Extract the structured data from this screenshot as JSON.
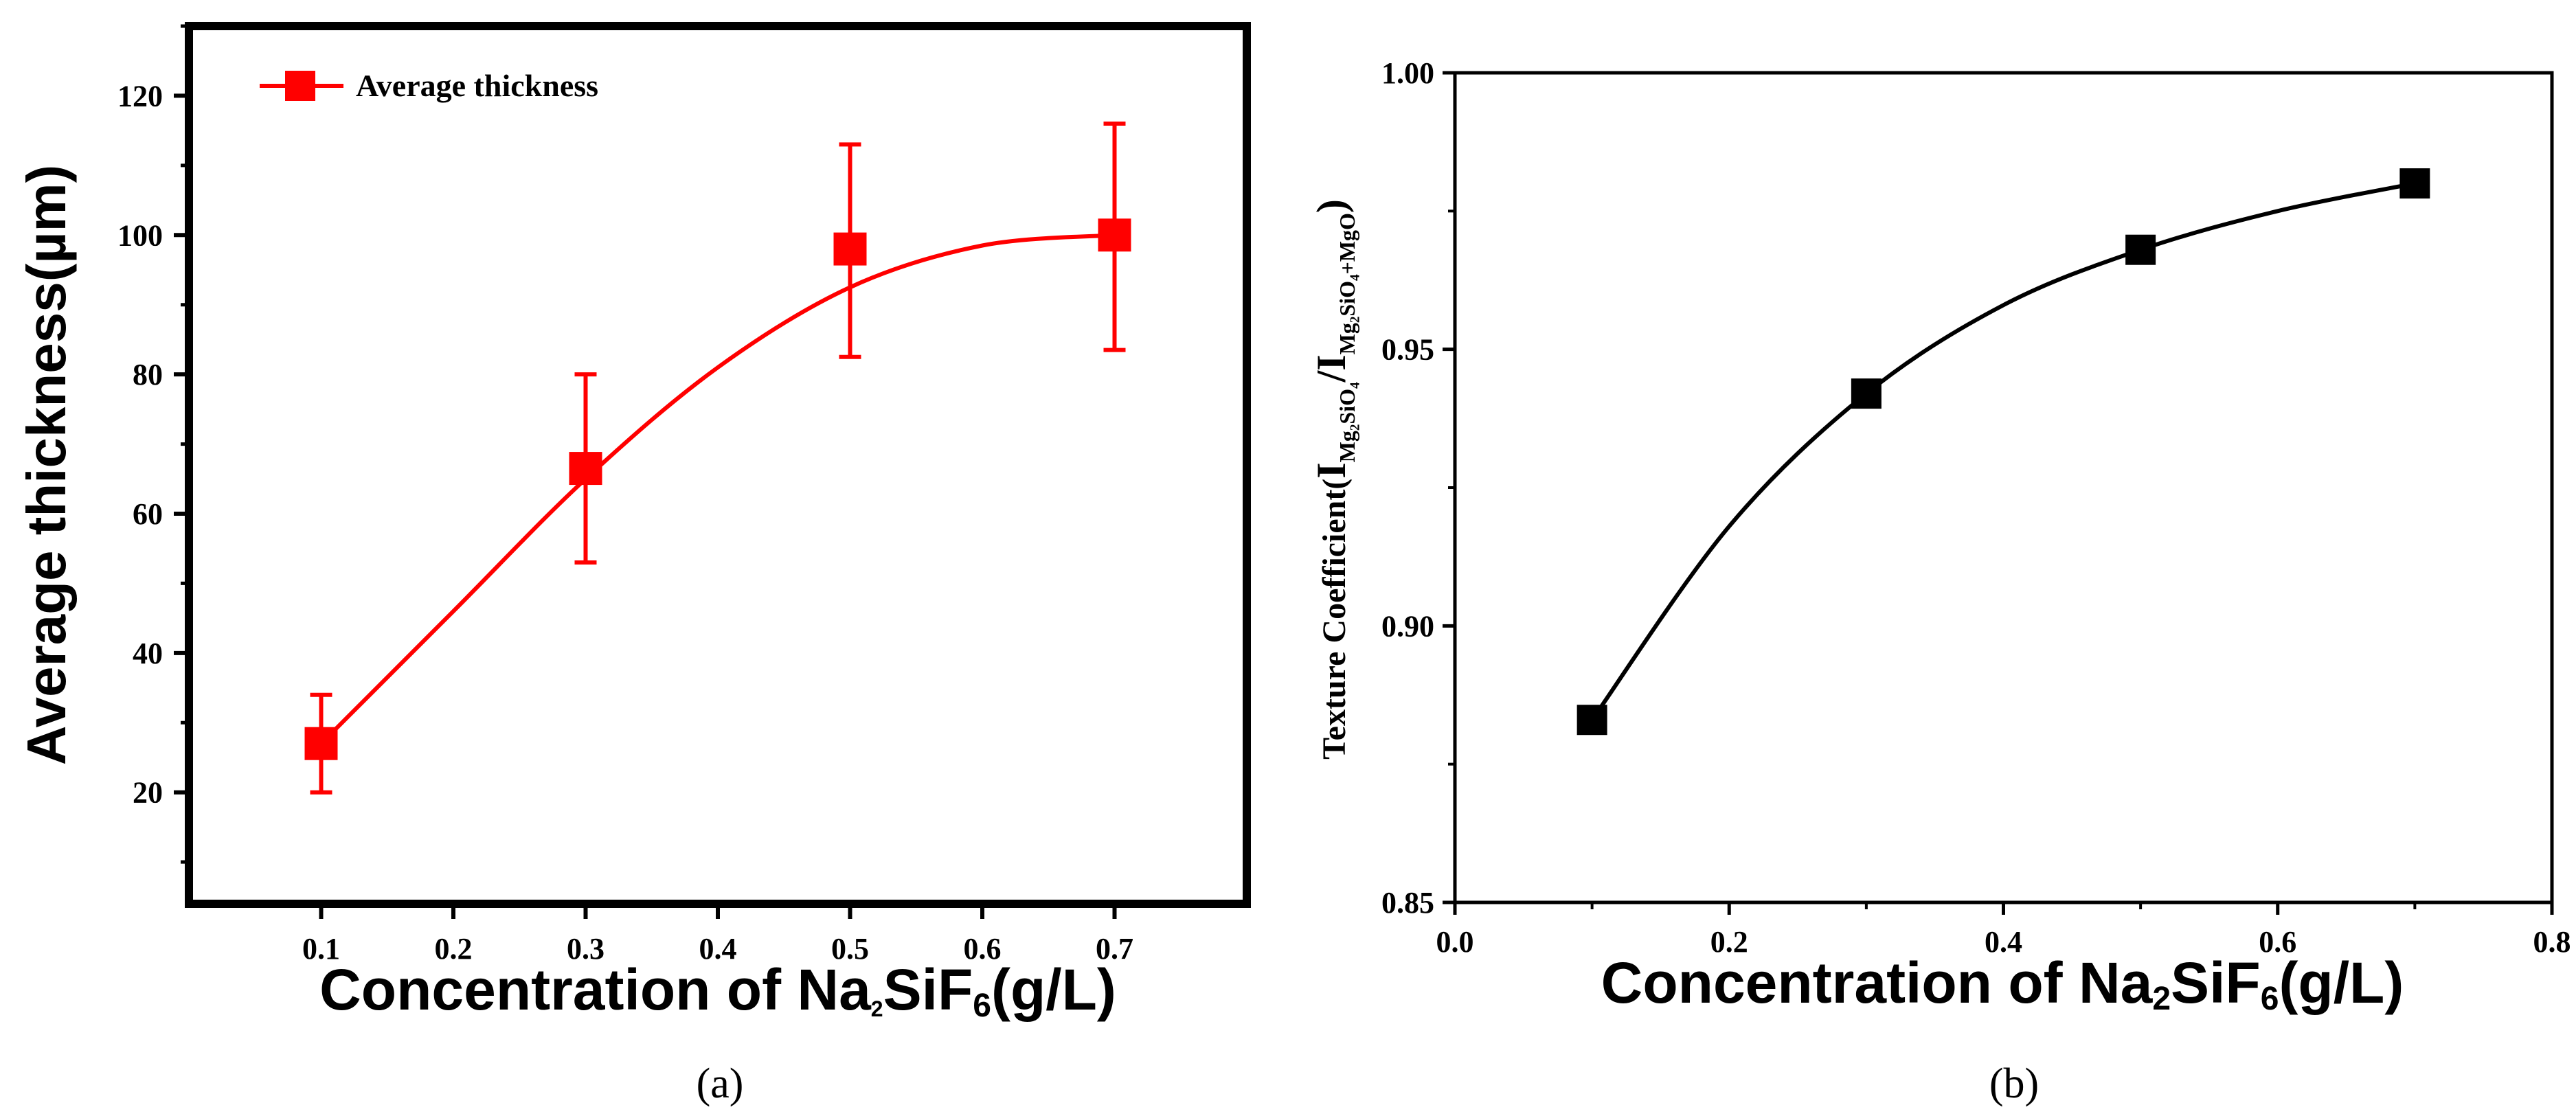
{
  "chart_data": [
    {
      "type": "line",
      "panel": "a",
      "panel_label": "(a)",
      "x": [
        0.1,
        0.3,
        0.5,
        0.7
      ],
      "series": [
        {
          "name": "Average thickness",
          "values": [
            27,
            66.5,
            98,
            100
          ],
          "error_low": [
            20,
            53,
            82.5,
            83.5
          ],
          "error_high": [
            34,
            80,
            113,
            116
          ],
          "color": "#ff0000",
          "fit": [
            [
              0.1,
              27
            ],
            [
              0.2,
              46
            ],
            [
              0.3,
              65
            ],
            [
              0.4,
              81
            ],
            [
              0.5,
              92.5
            ],
            [
              0.6,
              98.5
            ],
            [
              0.7,
              100
            ]
          ]
        }
      ],
      "title": "",
      "xlabel_main": "Concentration of Na",
      "xlabel_sub1": "2",
      "xlabel_mid": "SiF",
      "xlabel_sub2": "6",
      "xlabel_end": "(g/L)",
      "ylabel": "Average thickness(µm)",
      "xticks": [
        "0.1",
        "0.2",
        "0.3",
        "0.4",
        "0.5",
        "0.6",
        "0.7"
      ],
      "yticks": [
        "20",
        "40",
        "60",
        "80",
        "100",
        "120"
      ],
      "xlim": [
        0.0,
        0.8
      ],
      "ylim": [
        4,
        130
      ],
      "legend": "top-left"
    },
    {
      "type": "line",
      "panel": "b",
      "panel_label": "(b)",
      "x": [
        0.1,
        0.3,
        0.5,
        0.7
      ],
      "series": [
        {
          "name": "Texture Coefficient",
          "values": [
            0.883,
            0.942,
            0.968,
            0.98
          ],
          "color": "#000000",
          "fit": [
            [
              0.1,
              0.883
            ],
            [
              0.2,
              0.918
            ],
            [
              0.3,
              0.942
            ],
            [
              0.4,
              0.958
            ],
            [
              0.5,
              0.968
            ],
            [
              0.6,
              0.975
            ],
            [
              0.7,
              0.98
            ]
          ]
        }
      ],
      "title": "",
      "xlabel_main": "Concentration of Na",
      "xlabel_sub1": "2",
      "xlabel_mid": "SiF",
      "xlabel_sub2": "6",
      "xlabel_end": "(g/L)",
      "ylabel_main": "Texture Coefficient(",
      "ylabel_i1": "I",
      "ylabel_sub1": "Mg₂SiO₄",
      "ylabel_slash": "/",
      "ylabel_i2": "I",
      "ylabel_sub2": "Mg₂SiO₄+MgO",
      "ylabel_end": ")",
      "xticks": [
        "0.0",
        "0.2",
        "0.4",
        "0.6",
        "0.8"
      ],
      "yticks": [
        "0.85",
        "0.90",
        "0.95",
        "1.00"
      ],
      "xlim": [
        0.0,
        0.8
      ],
      "ylim": [
        0.85,
        1.0
      ]
    }
  ]
}
